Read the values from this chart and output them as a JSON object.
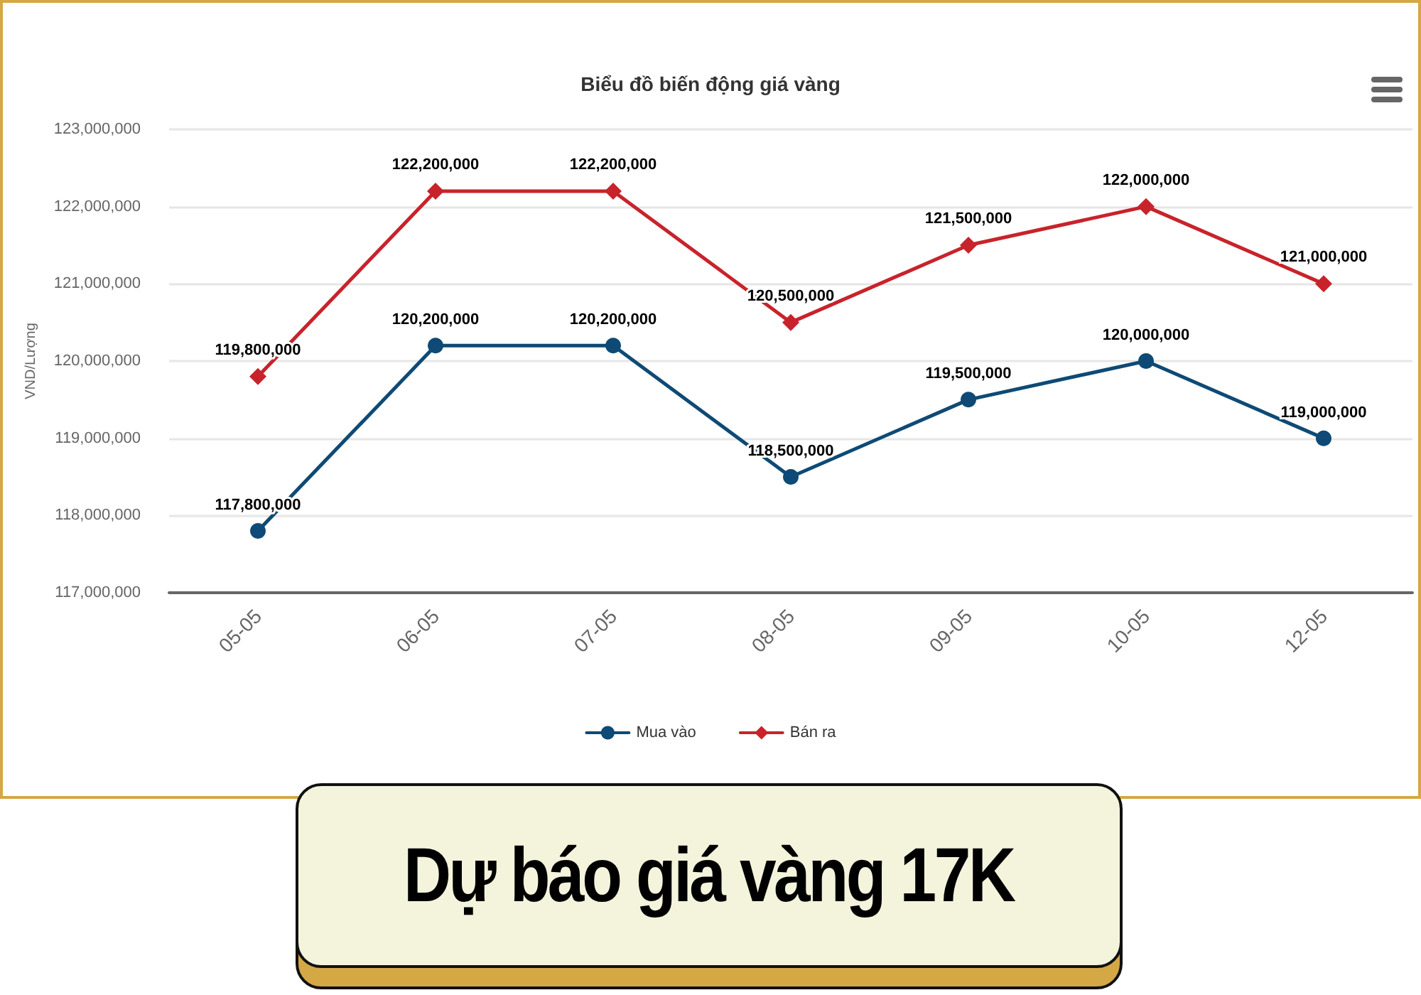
{
  "chart_data": {
    "type": "line",
    "title": "Biểu đồ biến động giá vàng",
    "ylabel": "VND/Lượng",
    "annotations": [
      "Dự báo giá vàng 17K"
    ],
    "categories": [
      "05-05",
      "06-05",
      "07-05",
      "08-05",
      "09-05",
      "10-05",
      "12-05"
    ],
    "series": [
      {
        "name": "Mua vào",
        "color": "#0e4a75",
        "marker": "circle",
        "values": [
          117800000,
          120200000,
          120200000,
          118500000,
          119500000,
          120000000,
          119000000
        ],
        "value_labels": [
          "117,800,000",
          "120,200,000",
          "120,200,000",
          "118,500,000",
          "119,500,000",
          "120,000,000",
          "119,000,000"
        ]
      },
      {
        "name": "Bán ra",
        "color": "#c8232b",
        "marker": "diamond",
        "values": [
          119800000,
          122200000,
          122200000,
          120500000,
          121500000,
          122000000,
          121000000
        ],
        "value_labels": [
          "119,800,000",
          "122,200,000",
          "122,200,000",
          "120,500,000",
          "121,500,000",
          "122,000,000",
          "121,000,000"
        ]
      }
    ],
    "ylim": [
      117000000,
      123000000
    ],
    "yticks": [
      {
        "value": 117000000,
        "label": "117,000,000"
      },
      {
        "value": 118000000,
        "label": "118,000,000"
      },
      {
        "value": 119000000,
        "label": "119,000,000"
      },
      {
        "value": 120000000,
        "label": "120,000,000"
      },
      {
        "value": 121000000,
        "label": "121,000,000"
      },
      {
        "value": 122000000,
        "label": "122,000,000"
      },
      {
        "value": 123000000,
        "label": "123,000,000"
      }
    ],
    "grid": "y",
    "legend": "bottom"
  }
}
